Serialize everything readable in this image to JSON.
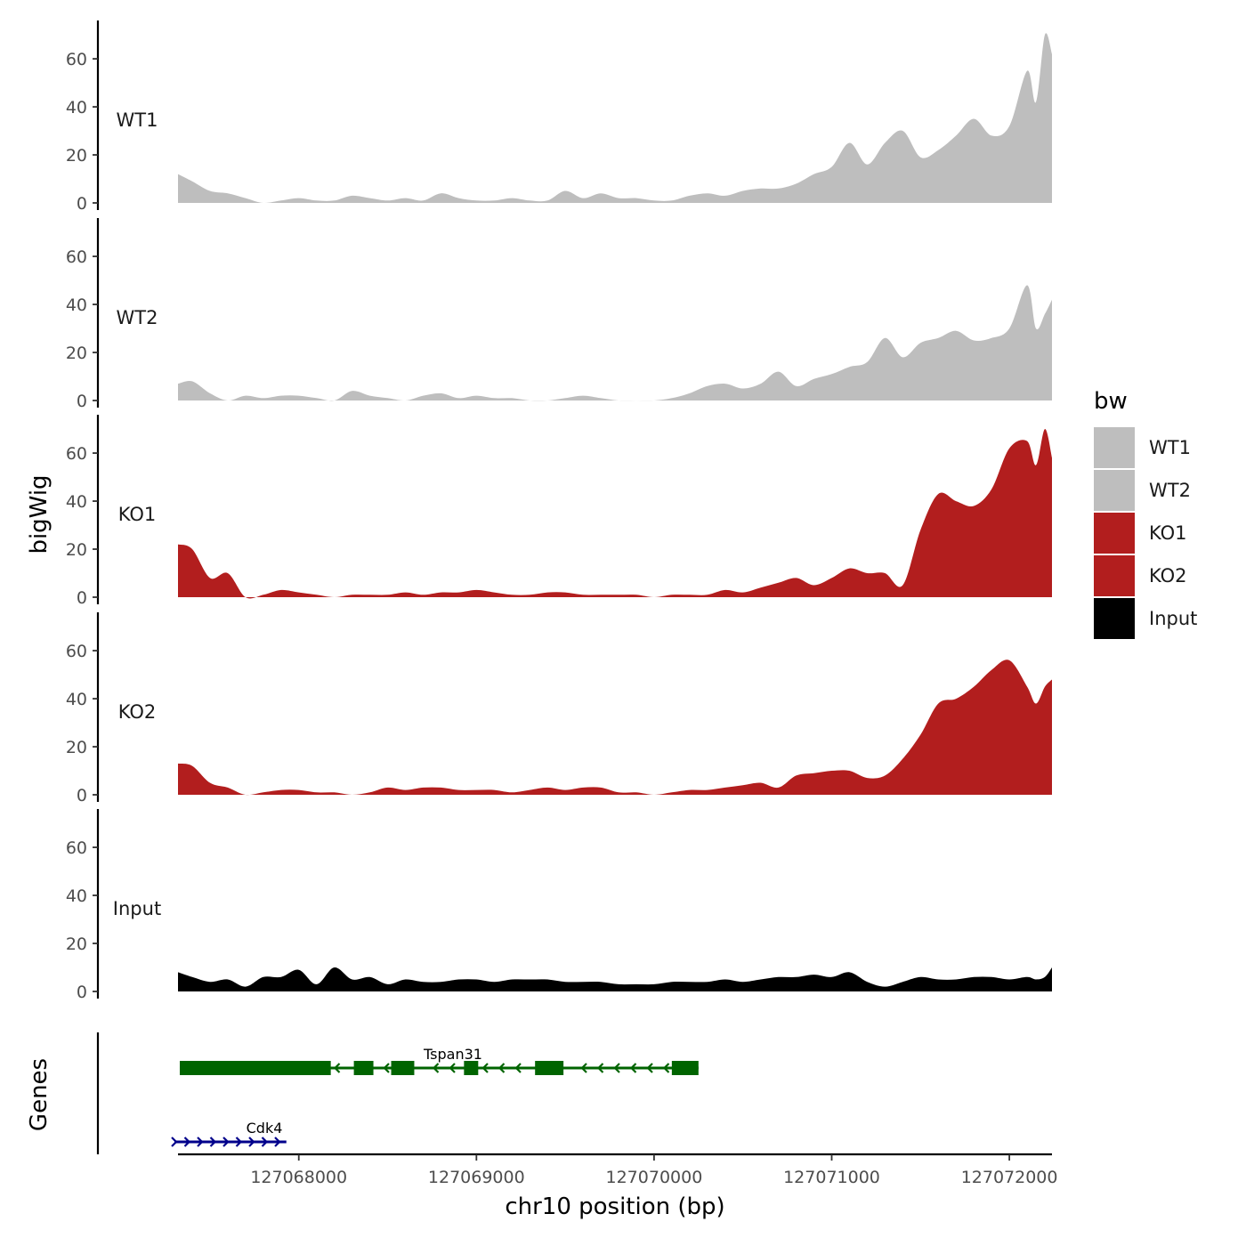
{
  "chart_data": {
    "type": "area",
    "ylabel": "bigWig",
    "xlabel": "chr10 position (bp)",
    "xlim": [
      127067320,
      127072240
    ],
    "ylim": [
      0,
      73
    ],
    "y_ticks": [
      0,
      20,
      40,
      60
    ],
    "y_tick_labels": [
      "0",
      "20",
      "40",
      "60"
    ],
    "x_ticks": [
      127068000,
      127069000,
      127070000,
      127071000,
      127072000
    ],
    "x_tick_labels": [
      "127068000",
      "127069000",
      "127070000",
      "127071000",
      "127072000"
    ],
    "positions": [
      127067320,
      127067400,
      127067500,
      127067600,
      127067700,
      127067800,
      127067900,
      127068000,
      127068100,
      127068200,
      127068300,
      127068400,
      127068500,
      127068600,
      127068700,
      127068800,
      127068900,
      127069000,
      127069100,
      127069200,
      127069300,
      127069400,
      127069500,
      127069600,
      127069700,
      127069800,
      127069900,
      127070000,
      127070100,
      127070200,
      127070300,
      127070400,
      127070500,
      127070600,
      127070700,
      127070800,
      127070900,
      127071000,
      127071100,
      127071200,
      127071300,
      127071400,
      127071500,
      127071600,
      127071700,
      127071800,
      127071900,
      127072000,
      127072100,
      127072150,
      127072200,
      127072240
    ],
    "series": [
      {
        "name": "WT1",
        "color": "#bebebe",
        "values": [
          12,
          9,
          5,
          4,
          2,
          0,
          1,
          2,
          1,
          1,
          3,
          2,
          1,
          2,
          1,
          4,
          2,
          1,
          1,
          2,
          1,
          1,
          5,
          2,
          4,
          2,
          2,
          1,
          1,
          3,
          4,
          3,
          5,
          6,
          6,
          8,
          12,
          15,
          25,
          16,
          25,
          30,
          19,
          22,
          28,
          35,
          28,
          32,
          55,
          42,
          70,
          62
        ]
      },
      {
        "name": "WT2",
        "color": "#bebebe",
        "values": [
          7,
          8,
          3,
          0,
          2,
          1,
          2,
          2,
          1,
          0,
          4,
          2,
          1,
          0,
          2,
          3,
          1,
          2,
          1,
          1,
          0,
          0,
          1,
          2,
          1,
          0,
          0,
          0,
          1,
          3,
          6,
          7,
          5,
          7,
          12,
          6,
          9,
          11,
          14,
          16,
          26,
          18,
          24,
          26,
          29,
          25,
          26,
          30,
          48,
          30,
          36,
          42
        ]
      },
      {
        "name": "KO1",
        "color": "#b21e1e",
        "values": [
          22,
          20,
          8,
          10,
          0,
          1,
          3,
          2,
          1,
          0,
          1,
          1,
          1,
          2,
          1,
          2,
          2,
          3,
          2,
          1,
          1,
          2,
          2,
          1,
          1,
          1,
          1,
          0,
          1,
          1,
          1,
          3,
          2,
          4,
          6,
          8,
          5,
          8,
          12,
          10,
          10,
          5,
          28,
          43,
          40,
          38,
          45,
          62,
          65,
          55,
          70,
          58
        ]
      },
      {
        "name": "KO2",
        "color": "#b21e1e",
        "values": [
          13,
          12,
          5,
          3,
          0,
          1,
          2,
          2,
          1,
          1,
          0,
          1,
          3,
          2,
          3,
          3,
          2,
          2,
          2,
          1,
          2,
          3,
          2,
          3,
          3,
          1,
          1,
          0,
          1,
          2,
          2,
          3,
          4,
          5,
          3,
          8,
          9,
          10,
          10,
          7,
          8,
          15,
          25,
          38,
          40,
          45,
          52,
          56,
          45,
          38,
          45,
          48
        ]
      },
      {
        "name": "Input",
        "color": "#000000",
        "values": [
          8,
          6,
          4,
          5,
          2,
          6,
          6,
          9,
          3,
          10,
          5,
          6,
          3,
          5,
          4,
          4,
          5,
          5,
          4,
          5,
          5,
          5,
          4,
          4,
          4,
          3,
          3,
          3,
          4,
          4,
          4,
          5,
          4,
          5,
          6,
          6,
          7,
          6,
          8,
          4,
          2,
          4,
          6,
          5,
          5,
          6,
          6,
          5,
          6,
          5,
          6,
          10
        ]
      }
    ],
    "genes": [
      {
        "name": "Tspan31",
        "strand": "-",
        "color": "#006400",
        "start": 127067330,
        "end": 127070250,
        "exons": [
          [
            127067330,
            127068180
          ],
          [
            127068310,
            127068420
          ],
          [
            127068520,
            127068650
          ],
          [
            127068930,
            127069010
          ],
          [
            127069330,
            127069490
          ],
          [
            127070100,
            127070250
          ]
        ]
      },
      {
        "name": "Cdk4",
        "strand": "+",
        "color": "#00008b",
        "start": 127067300,
        "end": 127067930,
        "exons": []
      }
    ],
    "track_label_genes": "Genes",
    "legend": {
      "title": "bw",
      "position": "right",
      "entries": [
        {
          "label": "WT1",
          "color": "#bebebe"
        },
        {
          "label": "WT2",
          "color": "#bebebe"
        },
        {
          "label": "KO1",
          "color": "#b21e1e"
        },
        {
          "label": "KO2",
          "color": "#b21e1e"
        },
        {
          "label": "Input",
          "color": "#000000"
        }
      ]
    }
  }
}
